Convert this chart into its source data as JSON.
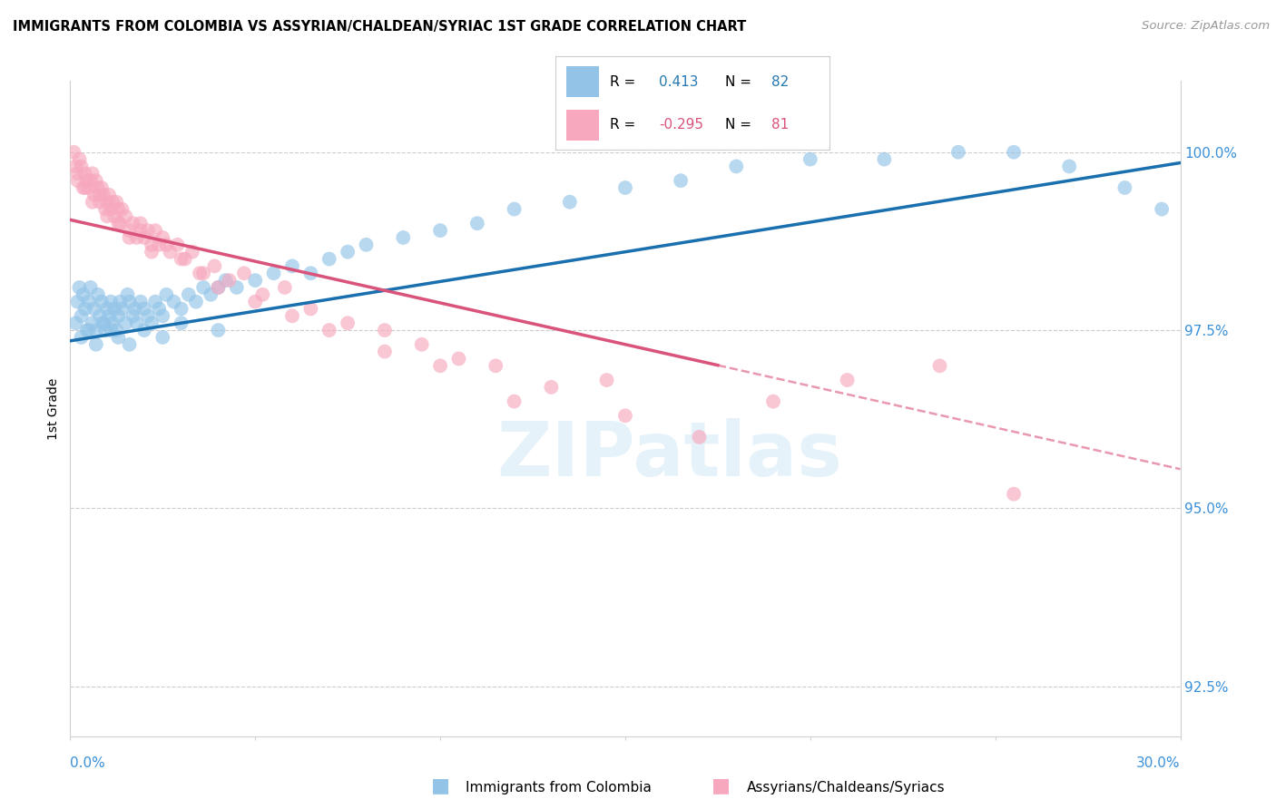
{
  "title": "IMMIGRANTS FROM COLOMBIA VS ASSYRIAN/CHALDEAN/SYRIAC 1ST GRADE CORRELATION CHART",
  "source": "Source: ZipAtlas.com",
  "ylabel": "1st Grade",
  "y_ticks": [
    92.5,
    95.0,
    97.5,
    100.0
  ],
  "y_tick_labels": [
    "92.5%",
    "95.0%",
    "97.5%",
    "100.0%"
  ],
  "xmin": 0.0,
  "xmax": 30.0,
  "ymin": 91.8,
  "ymax": 101.0,
  "blue_color": "#93c4e8",
  "pink_color": "#f7a8be",
  "blue_line_color": "#1a6faf",
  "pink_line_color": "#d9537a",
  "watermark_text": "ZIPatlas",
  "legend_label_blue": "Immigrants from Colombia",
  "legend_label_pink": "Assyrians/Chaldeans/Syriacs",
  "blue_line_y0": 97.35,
  "blue_line_y1": 99.85,
  "pink_line_y0": 99.05,
  "pink_line_y1": 95.55,
  "pink_solid_end_x": 17.5,
  "blue_scatter_x": [
    0.15,
    0.2,
    0.25,
    0.3,
    0.35,
    0.4,
    0.45,
    0.5,
    0.55,
    0.6,
    0.65,
    0.7,
    0.75,
    0.8,
    0.85,
    0.9,
    0.95,
    1.0,
    1.05,
    1.1,
    1.15,
    1.2,
    1.25,
    1.3,
    1.35,
    1.4,
    1.5,
    1.55,
    1.6,
    1.7,
    1.75,
    1.8,
    1.9,
    2.0,
    2.1,
    2.2,
    2.3,
    2.4,
    2.5,
    2.6,
    2.8,
    3.0,
    3.2,
    3.4,
    3.6,
    3.8,
    4.0,
    4.2,
    4.5,
    5.0,
    5.5,
    6.0,
    6.5,
    7.0,
    7.5,
    8.0,
    9.0,
    10.0,
    11.0,
    12.0,
    13.5,
    15.0,
    16.5,
    18.0,
    20.0,
    22.0,
    24.0,
    25.5,
    27.0,
    28.5,
    29.5,
    0.3,
    0.5,
    0.7,
    0.9,
    1.1,
    1.3,
    1.6,
    2.0,
    2.5,
    3.0,
    4.0
  ],
  "blue_scatter_y": [
    97.6,
    97.9,
    98.1,
    97.7,
    98.0,
    97.8,
    97.5,
    97.9,
    98.1,
    97.6,
    97.8,
    97.5,
    98.0,
    97.7,
    97.9,
    97.6,
    97.5,
    97.8,
    97.7,
    97.9,
    97.6,
    97.8,
    97.5,
    97.7,
    97.9,
    97.8,
    97.6,
    98.0,
    97.9,
    97.7,
    97.8,
    97.6,
    97.9,
    97.8,
    97.7,
    97.6,
    97.9,
    97.8,
    97.7,
    98.0,
    97.9,
    97.8,
    98.0,
    97.9,
    98.1,
    98.0,
    98.1,
    98.2,
    98.1,
    98.2,
    98.3,
    98.4,
    98.3,
    98.5,
    98.6,
    98.7,
    98.8,
    98.9,
    99.0,
    99.2,
    99.3,
    99.5,
    99.6,
    99.8,
    99.9,
    99.9,
    100.0,
    100.0,
    99.8,
    99.5,
    99.2,
    97.4,
    97.5,
    97.3,
    97.6,
    97.5,
    97.4,
    97.3,
    97.5,
    97.4,
    97.6,
    97.5
  ],
  "pink_scatter_x": [
    0.1,
    0.15,
    0.2,
    0.25,
    0.3,
    0.35,
    0.4,
    0.45,
    0.5,
    0.55,
    0.6,
    0.65,
    0.7,
    0.75,
    0.8,
    0.85,
    0.9,
    0.95,
    1.0,
    1.05,
    1.1,
    1.15,
    1.2,
    1.25,
    1.3,
    1.35,
    1.4,
    1.5,
    1.6,
    1.7,
    1.8,
    1.9,
    2.0,
    2.1,
    2.2,
    2.3,
    2.4,
    2.5,
    2.7,
    2.9,
    3.1,
    3.3,
    3.6,
    3.9,
    4.3,
    4.7,
    5.2,
    5.8,
    6.5,
    7.5,
    8.5,
    9.5,
    10.5,
    11.5,
    13.0,
    15.0,
    17.0,
    19.0,
    21.0,
    23.5,
    25.5,
    0.2,
    0.4,
    0.6,
    0.8,
    1.0,
    1.3,
    1.6,
    1.9,
    2.2,
    2.6,
    3.0,
    3.5,
    4.0,
    5.0,
    6.0,
    7.0,
    8.5,
    10.0,
    12.0,
    14.5
  ],
  "pink_scatter_y": [
    100.0,
    99.8,
    99.7,
    99.9,
    99.8,
    99.5,
    99.7,
    99.6,
    99.5,
    99.6,
    99.7,
    99.4,
    99.6,
    99.5,
    99.3,
    99.5,
    99.4,
    99.2,
    99.3,
    99.4,
    99.2,
    99.3,
    99.1,
    99.3,
    99.2,
    99.0,
    99.2,
    99.1,
    98.9,
    99.0,
    98.8,
    99.0,
    98.8,
    98.9,
    98.7,
    98.9,
    98.7,
    98.8,
    98.6,
    98.7,
    98.5,
    98.6,
    98.3,
    98.4,
    98.2,
    98.3,
    98.0,
    98.1,
    97.8,
    97.6,
    97.5,
    97.3,
    97.1,
    97.0,
    96.7,
    96.3,
    96.0,
    96.5,
    96.8,
    97.0,
    95.2,
    99.6,
    99.5,
    99.3,
    99.4,
    99.1,
    99.0,
    98.8,
    98.9,
    98.6,
    98.7,
    98.5,
    98.3,
    98.1,
    97.9,
    97.7,
    97.5,
    97.2,
    97.0,
    96.5,
    96.8
  ]
}
